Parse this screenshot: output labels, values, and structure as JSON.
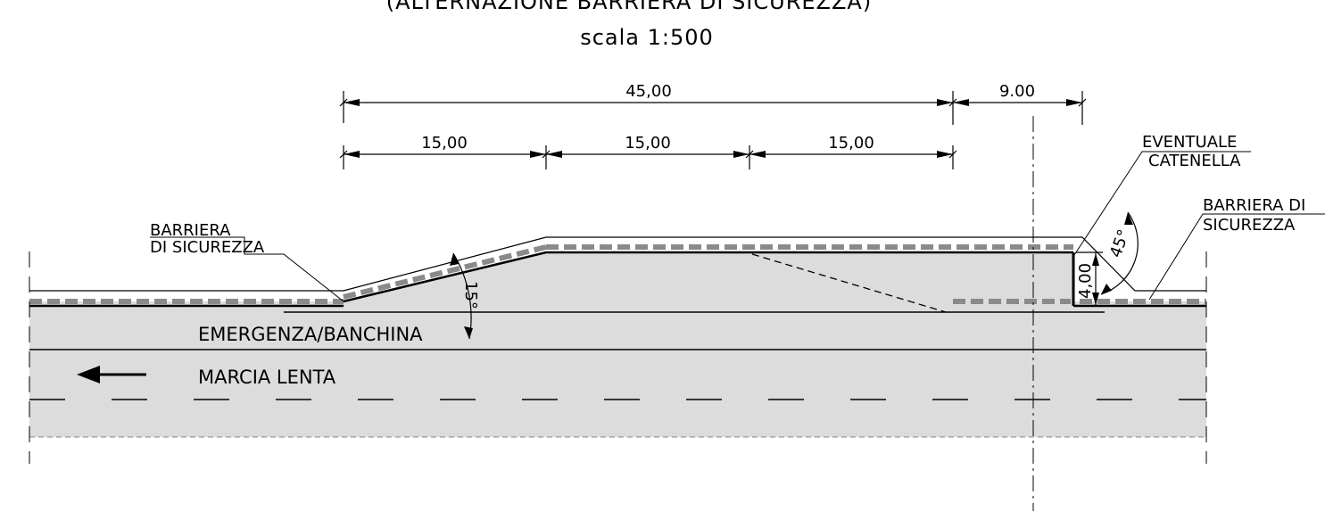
{
  "title": {
    "line1": "(ALTERNAZIONE BARRIERA DI SICUREZZA)",
    "scale": "scala 1:500"
  },
  "dimensions": {
    "total": "45,00",
    "segment_1": "15,00",
    "segment_2": "15,00",
    "segment_3": "15,00",
    "end_offset": "9.00",
    "height": "4,00"
  },
  "angles": {
    "taper": "15°",
    "return": "45°"
  },
  "labels": {
    "barrier_left_1": "BARRIERA",
    "barrier_left_2": "DI SICUREZZA",
    "chain_1": "EVENTUALE",
    "chain_2": "CATENELLA",
    "barrier_right_1": "BARRIERA DI",
    "barrier_right_2": "SICUREZZA",
    "shoulder": "EMERGENZA/BANCHINA",
    "slow_lane": "MARCIA LENTA"
  },
  "icons": {
    "direction": "left-arrow-icon"
  },
  "colors": {
    "road_fill": "#dcdcdc",
    "barrier_dash": "#8a8a8a",
    "ink": "#000000"
  }
}
